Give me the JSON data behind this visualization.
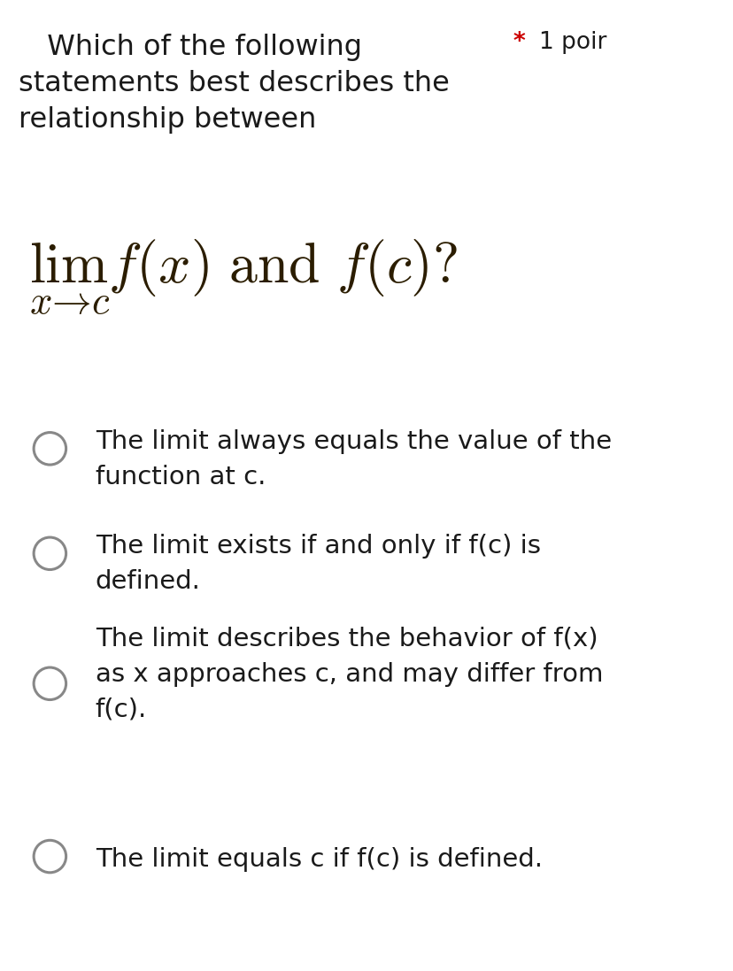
{
  "background_color": "#ffffff",
  "question_line1": "  Which of the following",
  "question_line2": "statements best describes the",
  "question_line3": "relationship between",
  "points_star": "* ",
  "points_text": "1 poir",
  "options": [
    "The limit always equals the value of the\nfunction at c.",
    "The limit exists if and only if f(c) is\ndefined.",
    "The limit describes the behavior of f(x)\nas x approaches c, and may differ from\nf(c).",
    "The limit equals c if f(c) is defined."
  ],
  "question_fontsize": 23,
  "math_fontsize": 46,
  "option_fontsize": 21,
  "points_fontsize": 19,
  "text_color": "#1a1a1a",
  "math_color": "#2b1d00",
  "star_color": "#cc0000",
  "circle_edge_color": "#888888",
  "circle_linewidth": 2.2,
  "fig_width": 8.29,
  "fig_height": 10.97
}
